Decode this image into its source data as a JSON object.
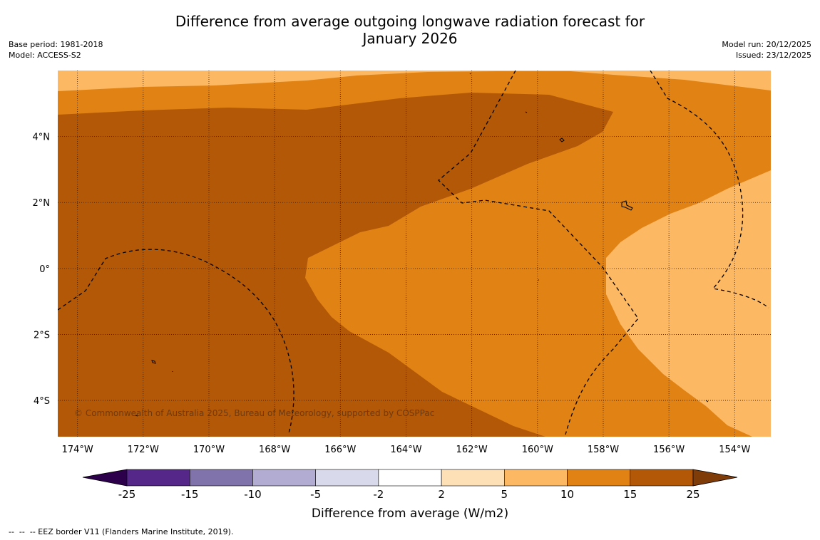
{
  "title": {
    "line1": "Difference from average outgoing longwave radiation forecast for",
    "line2": "January 2026"
  },
  "meta_left": {
    "base_period": "Base period: 1981-2018",
    "model": "Model: ACCESS-S2"
  },
  "meta_right": {
    "model_run": "Model run: 20/12/2025",
    "issued": "Issued: 23/12/2025"
  },
  "map": {
    "lon_range": [
      -174.6,
      -152.9
    ],
    "lat_range": [
      -5.1,
      6.0
    ],
    "lon_ticks": [
      {
        "value": -174,
        "label": "174°W"
      },
      {
        "value": -172,
        "label": "172°W"
      },
      {
        "value": -170,
        "label": "170°W"
      },
      {
        "value": -168,
        "label": "168°W"
      },
      {
        "value": -166,
        "label": "166°W"
      },
      {
        "value": -164,
        "label": "164°W"
      },
      {
        "value": -162,
        "label": "162°W"
      },
      {
        "value": -160,
        "label": "160°W"
      },
      {
        "value": -158,
        "label": "158°W"
      },
      {
        "value": -156,
        "label": "156°W"
      },
      {
        "value": -154,
        "label": "154°W"
      }
    ],
    "lat_ticks": [
      {
        "value": 4,
        "label": "4°N"
      },
      {
        "value": 2,
        "label": "2°N"
      },
      {
        "value": 0,
        "label": "0°"
      },
      {
        "value": -2,
        "label": "2°S"
      },
      {
        "value": -4,
        "label": "4°S"
      }
    ],
    "copyright": "© Commonwealth of Australia 2025, Bureau of Meteorology, supported by COSPPac"
  },
  "colorbar": {
    "title": "Difference from average (W/m2)",
    "labels": [
      "-25",
      "-15",
      "-10",
      "-5",
      "-2",
      "2",
      "5",
      "10",
      "15",
      "25"
    ],
    "colors": [
      "#542788",
      "#8073ac",
      "#b2abd2",
      "#d8daeb",
      "#ffffff",
      "#fee0b6",
      "#fdb863",
      "#e08214",
      "#b35806"
    ],
    "under_color": "#2d004b",
    "over_color": "#7f3b08"
  },
  "footnote": "--  --  -- EEZ border V11 (Flanders Marine Institute, 2019)."
}
